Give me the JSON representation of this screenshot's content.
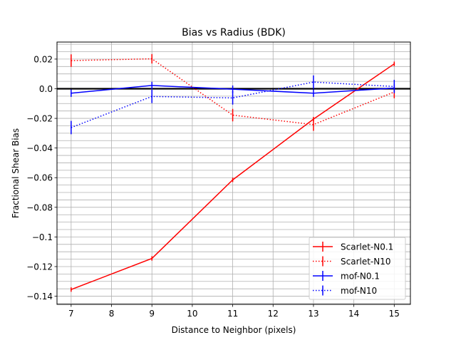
{
  "chart_data": {
    "type": "line",
    "title": "Bias vs Radius (BDK)",
    "xlabel": "Distance to Neighbor (pixels)",
    "ylabel": "Fractional Shear Bias",
    "xlim": [
      6.65,
      15.4
    ],
    "ylim": [
      -0.1455,
      0.0315
    ],
    "x_ticks": [
      7,
      8,
      9,
      10,
      11,
      12,
      13,
      14,
      15
    ],
    "x_tick_labels": [
      "7",
      "8",
      "9",
      "10",
      "11",
      "12",
      "13",
      "14",
      "15"
    ],
    "y_ticks": [
      0.02,
      0.0,
      -0.02,
      -0.04,
      -0.06,
      -0.08,
      -0.1,
      -0.12,
      -0.14
    ],
    "y_tick_labels": [
      "0.02",
      "0.0",
      "−0.02",
      "−0.04",
      "−0.06",
      "−0.08",
      "−0.1",
      "−0.12",
      "−0.14"
    ],
    "grid": true,
    "minor_grid_y_step": 0.005,
    "reference_line_y": 0,
    "legend_position": "lower-right",
    "series": [
      {
        "name": "Scarlet-N0.1",
        "color": "#ff0000",
        "dashed": false,
        "x": [
          7,
          9,
          11,
          13,
          15
        ],
        "values": [
          -0.1355,
          -0.1145,
          -0.0615,
          -0.0205,
          0.0168
        ],
        "errors": [
          0.0015,
          0.0015,
          0.0015,
          0.0015,
          0.0015
        ]
      },
      {
        "name": "Scarlet-N10",
        "color": "#ff0000",
        "dashed": true,
        "x": [
          7,
          9,
          11,
          13,
          15
        ],
        "values": [
          0.019,
          0.0202,
          -0.0178,
          -0.0242,
          -0.0022
        ],
        "errors": [
          0.0042,
          0.0032,
          0.0042,
          0.0042,
          0.0042
        ]
      },
      {
        "name": "mof-N0.1",
        "color": "#0000ff",
        "dashed": false,
        "x": [
          7,
          9,
          11,
          13,
          15
        ],
        "values": [
          -0.003,
          0.0022,
          -0.0003,
          -0.003,
          0.0005
        ],
        "errors": [
          0.0025,
          0.0025,
          0.0025,
          0.0025,
          0.0025
        ]
      },
      {
        "name": "mof-N10",
        "color": "#0000ff",
        "dashed": true,
        "x": [
          7,
          9,
          11,
          13,
          15
        ],
        "values": [
          -0.0262,
          -0.0052,
          -0.0062,
          0.0045,
          0.0015
        ],
        "errors": [
          0.0045,
          0.0045,
          0.0045,
          0.0045,
          0.0045
        ]
      }
    ]
  }
}
